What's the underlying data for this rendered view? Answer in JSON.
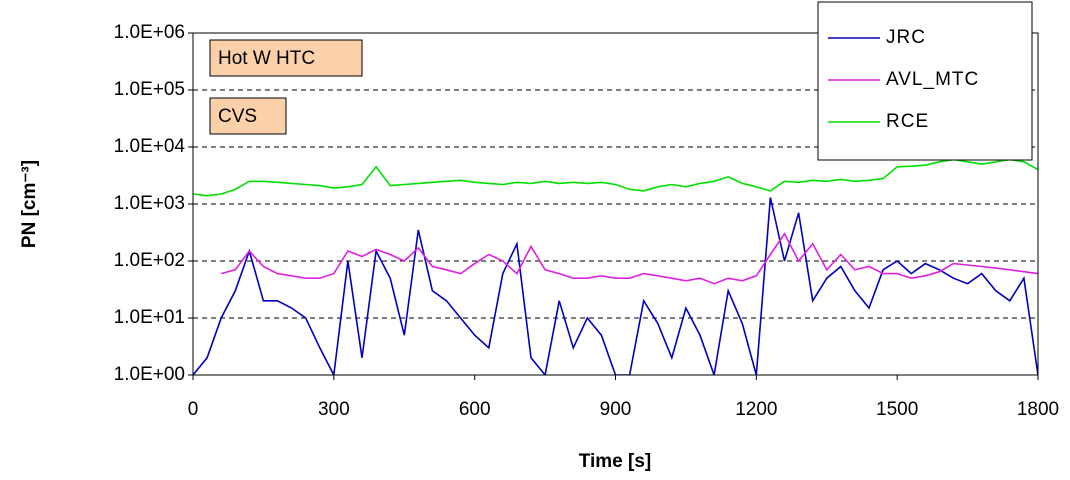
{
  "chart_data": {
    "type": "line",
    "x_label": "Time [s]",
    "y_label": "PN [cm⁻³]",
    "annotations": [
      "Hot W HTC",
      "CVS"
    ],
    "x": [
      0,
      30,
      60,
      90,
      120,
      150,
      180,
      210,
      240,
      270,
      300,
      330,
      360,
      390,
      420,
      450,
      480,
      510,
      540,
      570,
      600,
      630,
      660,
      690,
      720,
      750,
      780,
      810,
      840,
      870,
      900,
      930,
      960,
      990,
      1020,
      1050,
      1080,
      1110,
      1140,
      1170,
      1200,
      1230,
      1260,
      1290,
      1320,
      1350,
      1380,
      1410,
      1440,
      1470,
      1500,
      1530,
      1560,
      1590,
      1620,
      1650,
      1680,
      1710,
      1740,
      1770,
      1800
    ],
    "series": [
      {
        "name": "JRC",
        "color": "#0000c0",
        "values": [
          1,
          2,
          10,
          30,
          150,
          20,
          20,
          15,
          10,
          3,
          1,
          100,
          2,
          150,
          50,
          5,
          350,
          30,
          20,
          10,
          5,
          3,
          60,
          200,
          2,
          1,
          20,
          3,
          10,
          5,
          1,
          1,
          20,
          8,
          2,
          15,
          5,
          1,
          30,
          8,
          1,
          1300,
          100,
          700,
          20,
          50,
          80,
          30,
          15,
          70,
          100,
          60,
          90,
          70,
          50,
          40,
          60,
          30,
          20,
          50,
          1
        ]
      },
      {
        "name": "AVL_MTC",
        "color": "#e020e0",
        "values": [
          null,
          null,
          60,
          70,
          150,
          80,
          60,
          55,
          50,
          50,
          60,
          150,
          120,
          160,
          130,
          100,
          170,
          80,
          70,
          60,
          90,
          130,
          100,
          60,
          180,
          70,
          60,
          50,
          50,
          55,
          50,
          50,
          60,
          55,
          50,
          45,
          50,
          40,
          50,
          45,
          55,
          130,
          300,
          100,
          200,
          70,
          130,
          70,
          80,
          60,
          60,
          50,
          55,
          65,
          90,
          85,
          80,
          75,
          70,
          65,
          60
        ]
      },
      {
        "name": "RCE",
        "color": "#00e000",
        "values": [
          1500,
          1400,
          1500,
          1800,
          2500,
          2500,
          2400,
          2300,
          2200,
          2100,
          1900,
          2000,
          2200,
          4500,
          2100,
          2200,
          2300,
          2400,
          2500,
          2600,
          2400,
          2300,
          2200,
          2400,
          2300,
          2500,
          2300,
          2400,
          2300,
          2400,
          2200,
          1800,
          1700,
          2000,
          2200,
          2000,
          2300,
          2500,
          3000,
          2300,
          2000,
          1700,
          2500,
          2400,
          2600,
          2500,
          2700,
          2500,
          2600,
          2800,
          4500,
          4600,
          4800,
          5500,
          6000,
          5500,
          5000,
          5500,
          6000,
          5500,
          4000
        ]
      }
    ],
    "xlim": [
      0,
      1800
    ],
    "xticks": [
      0,
      300,
      600,
      900,
      1200,
      1500,
      1800
    ],
    "ylim": [
      1,
      1000000
    ],
    "log_y": true,
    "yticks": [
      {
        "value": 1,
        "label": "1.0E+00"
      },
      {
        "value": 10,
        "label": "1.0E+01"
      },
      {
        "value": 100,
        "label": "1.0E+02"
      },
      {
        "value": 1000,
        "label": "1.0E+03"
      },
      {
        "value": 10000,
        "label": "1.0E+04"
      },
      {
        "value": 100000,
        "label": "1.0E+05"
      },
      {
        "value": 1000000,
        "label": "1.0E+06"
      }
    ],
    "grid": true,
    "legend": "top-right"
  }
}
